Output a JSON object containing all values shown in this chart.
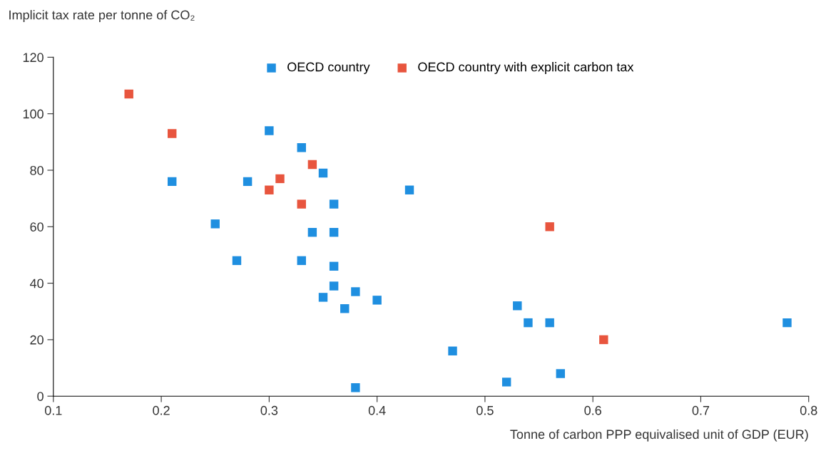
{
  "chart_data": {
    "type": "scatter",
    "ylabel": "Implicit tax rate per tonne of CO₂",
    "xlabel": "Tonne of carbon PPP equivalised unit of GDP (EUR)",
    "xlim": [
      0.1,
      0.8
    ],
    "xticks": [
      0.1,
      0.2,
      0.3,
      0.4,
      0.5,
      0.6,
      0.7,
      0.8
    ],
    "ylim": [
      0,
      120
    ],
    "yticks": [
      0,
      20,
      40,
      60,
      80,
      100,
      120
    ],
    "grid": false,
    "legend": "top",
    "marker": "square",
    "series": [
      {
        "name": "OECD country",
        "color": "#1f8fe0",
        "x": [
          0.21,
          0.25,
          0.27,
          0.28,
          0.3,
          0.33,
          0.35,
          0.34,
          0.33,
          0.36,
          0.36,
          0.36,
          0.36,
          0.35,
          0.37,
          0.38,
          0.4,
          0.38,
          0.43,
          0.47,
          0.52,
          0.53,
          0.54,
          0.56,
          0.57,
          0.78
        ],
        "values": [
          76,
          61,
          48,
          76,
          94,
          88,
          79,
          58,
          48,
          68,
          58,
          46,
          39,
          35,
          31,
          37,
          34,
          3,
          73,
          16,
          5,
          32,
          26,
          26,
          8,
          26
        ]
      },
      {
        "name": "OECD country with explicit carbon tax",
        "color": "#e8553e",
        "x": [
          0.17,
          0.21,
          0.3,
          0.31,
          0.34,
          0.33,
          0.56,
          0.61
        ],
        "values": [
          107,
          93,
          73,
          77,
          82,
          68,
          60,
          20
        ]
      }
    ]
  }
}
